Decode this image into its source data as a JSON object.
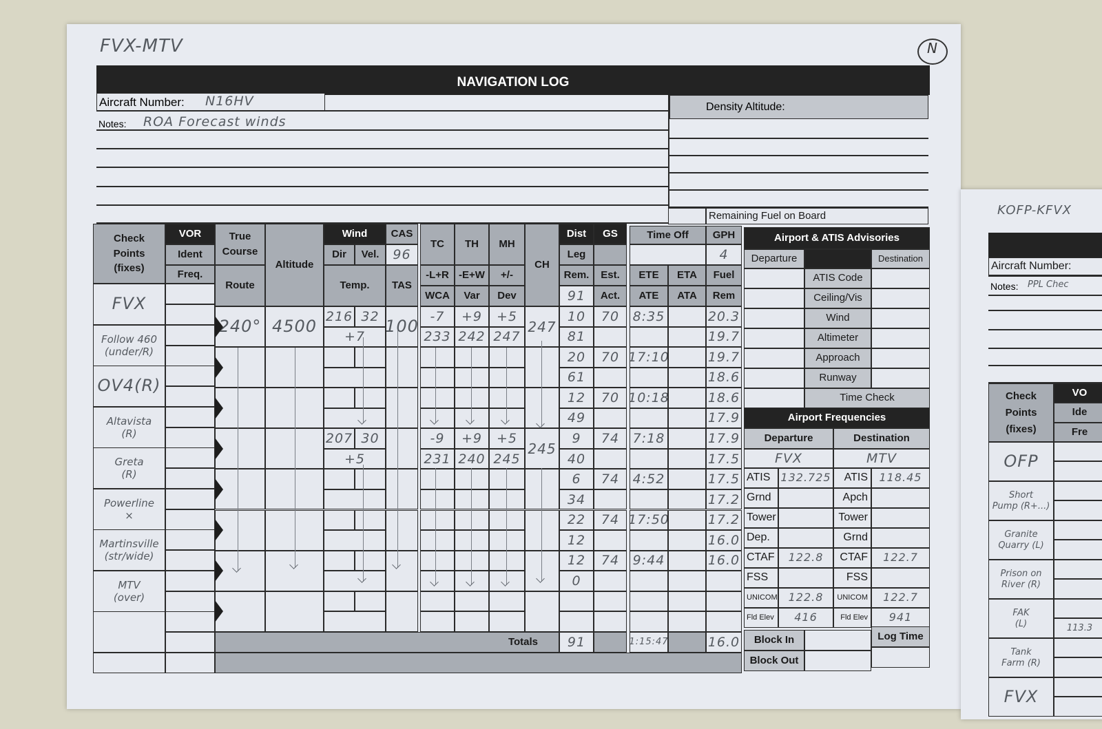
{
  "sheet": {
    "route_note": "FVX-MTV",
    "corner_mark": "N",
    "title": "NAVIGATION LOG",
    "aircraft_number_label": "Aircraft Number:",
    "aircraft_number": "N16HV",
    "notes_label": "Notes:",
    "notes": "ROA Forecast winds",
    "density_altitude_label": "Density Altitude:",
    "remaining_fuel_label": "Remaining Fuel on Board"
  },
  "nav": {
    "headers": {
      "check": "Check\nPoints\n(fixes)",
      "vor": "VOR",
      "ident": "Ident",
      "freq": "Freq.",
      "true_course": "True\nCourse",
      "route": "Route",
      "altitude": "Altitude",
      "wind": "Wind",
      "dir": "Dir",
      "vel": "Vel.",
      "temp": "Temp.",
      "cas": "CAS",
      "tas": "TAS",
      "tc": "TC",
      "th": "TH",
      "mh": "MH",
      "lr": "-L+R",
      "wca": "WCA",
      "ew": "-E+W",
      "var": "Var",
      "pm": "+/-",
      "dev": "Dev",
      "ch": "CH",
      "dist": "Dist",
      "gs": "GS",
      "leg": "Leg",
      "rem": "Rem.",
      "est": "Est.",
      "act": "Act.",
      "time_off": "Time Off",
      "ete": "ETE",
      "eta": "ETA",
      "ate": "ATE",
      "ata": "ATA",
      "gph": "GPH",
      "fuel": "Fuel",
      "fuel_rem": "Rem",
      "totals": "Totals"
    },
    "cas": "96",
    "total_rem": "91",
    "gph": "4",
    "checkpoints": [
      "FVX",
      "Follow 460\n(under/R)",
      "OV4(R)",
      "Altavista\n(R)",
      "Greta\n(R)",
      "Powerline\n×",
      "Martinsville\n(str/wide)",
      "MTV\n(over)"
    ],
    "legs": [
      {
        "route": "240°",
        "altitude": "4500",
        "wind_dir": "216",
        "wind_vel": "32",
        "temp": "+7",
        "tas": "100",
        "wca": "-7",
        "var": "+9",
        "dev": "+5",
        "th": "233",
        "mh": "242",
        "dh": "247",
        "ch": "247",
        "dist_leg": "10",
        "dist_rem": "81",
        "gs_est": "70",
        "ete": "8:35",
        "fuel_a": "20.3",
        "fuel_b": "19.7"
      },
      {
        "route": "",
        "altitude": "",
        "wind_dir": "",
        "wind_vel": "",
        "temp": "",
        "tas": "",
        "wca": "",
        "var": "",
        "dev": "",
        "th": "",
        "mh": "",
        "dh": "",
        "ch": "",
        "dist_leg": "20",
        "dist_rem": "61",
        "gs_est": "70",
        "ete": "17:10",
        "fuel_a": "19.7",
        "fuel_b": "18.6"
      },
      {
        "route": "",
        "altitude": "",
        "wind_dir": "",
        "wind_vel": "",
        "temp": "",
        "tas": "",
        "wca": "",
        "var": "",
        "dev": "",
        "th": "",
        "mh": "",
        "dh": "",
        "ch": "",
        "dist_leg": "12",
        "dist_rem": "49",
        "gs_est": "70",
        "ete": "10:18",
        "fuel_a": "18.6",
        "fuel_b": "17.9"
      },
      {
        "route": "",
        "altitude": "",
        "wind_dir": "207",
        "wind_vel": "30",
        "temp": "+5",
        "tas": "",
        "wca": "-9",
        "var": "+9",
        "dev": "+5",
        "th": "231",
        "mh": "240",
        "dh": "245",
        "ch": "245",
        "dist_leg": "9",
        "dist_rem": "40",
        "gs_est": "74",
        "ete": "7:18",
        "fuel_a": "17.9",
        "fuel_b": "17.5"
      },
      {
        "route": "",
        "altitude": "",
        "wind_dir": "",
        "wind_vel": "",
        "temp": "",
        "tas": "",
        "wca": "",
        "var": "",
        "dev": "",
        "th": "",
        "mh": "",
        "dh": "",
        "ch": "",
        "dist_leg": "6",
        "dist_rem": "34",
        "gs_est": "74",
        "ete": "4:52",
        "fuel_a": "17.5",
        "fuel_b": "17.2"
      },
      {
        "route": "",
        "altitude": "",
        "wind_dir": "",
        "wind_vel": "",
        "temp": "",
        "tas": "",
        "wca": "",
        "var": "",
        "dev": "",
        "th": "",
        "mh": "",
        "dh": "",
        "ch": "",
        "dist_leg": "22",
        "dist_rem": "12",
        "gs_est": "74",
        "ete": "17:50",
        "fuel_a": "17.2",
        "fuel_b": "16.0"
      },
      {
        "route": "",
        "altitude": "",
        "wind_dir": "",
        "wind_vel": "",
        "temp": "",
        "tas": "",
        "wca": "",
        "var": "",
        "dev": "",
        "th": "",
        "mh": "",
        "dh": "",
        "ch": "",
        "dist_leg": "12",
        "dist_rem": "0",
        "gs_est": "74",
        "ete": "9:44",
        "fuel_a": "16.0",
        "fuel_b": ""
      },
      {
        "route": "",
        "altitude": "",
        "wind_dir": "",
        "wind_vel": "",
        "temp": "",
        "tas": "",
        "wca": "",
        "var": "",
        "dev": "",
        "th": "",
        "mh": "",
        "dh": "",
        "ch": "",
        "dist_leg": "",
        "dist_rem": "",
        "gs_est": "",
        "ete": "",
        "fuel_a": "",
        "fuel_b": ""
      }
    ],
    "totals": {
      "dist": "91",
      "ate": "1:15:47",
      "fuel": "16.0"
    }
  },
  "advisories": {
    "title": "Airport & ATIS Advisories",
    "departure": "Departure",
    "destination": "Destination",
    "rows": [
      "ATIS Code",
      "Ceiling/Vis",
      "Wind",
      "Altimeter",
      "Approach",
      "Runway",
      "Time Check"
    ]
  },
  "frequencies": {
    "title": "Airport Frequencies",
    "departure": "Departure",
    "destination": "Destination",
    "departure_airport": "FVX",
    "destination_airport": "MTV",
    "rows": [
      {
        "dep_label": "ATIS",
        "dep_value": "132.725",
        "dest_label": "ATIS",
        "dest_value": "118.45"
      },
      {
        "dep_label": "Grnd",
        "dep_value": "",
        "dest_label": "Apch",
        "dest_value": ""
      },
      {
        "dep_label": "Tower",
        "dep_value": "",
        "dest_label": "Tower",
        "dest_value": ""
      },
      {
        "dep_label": "Dep.",
        "dep_value": "",
        "dest_label": "Grnd",
        "dest_value": ""
      },
      {
        "dep_label": "CTAF",
        "dep_value": "122.8",
        "dest_label": "CTAF",
        "dest_value": "122.7"
      },
      {
        "dep_label": "FSS",
        "dep_value": "",
        "dest_label": "FSS",
        "dest_value": ""
      },
      {
        "dep_label": "UNICOM",
        "dep_value": "122.8",
        "dest_label": "UNICOM",
        "dest_value": "122.7"
      },
      {
        "dep_label": "Fld Elev",
        "dep_value": "416",
        "dest_label": "Fld Elev",
        "dest_value": "941"
      }
    ]
  },
  "block": {
    "block_in": "Block In",
    "block_out": "Block Out",
    "log_time": "Log Time"
  },
  "second_sheet": {
    "route_note": "KOFP-KFVX",
    "aircraft_number_label": "Aircraft Number:",
    "notes_label": "Notes:",
    "notes": "PPL Chec",
    "check": "Check\nPoints\n(fixes)",
    "vor": "VO",
    "ident": "Ide",
    "freq": "Fre",
    "checkpoints": [
      "OFP",
      "Short\nPump (R+...)",
      "Granite\nQuarry (L)",
      "Prison on\nRiver (R)",
      "FAK\n(L)",
      "Tank\nFarm (R)",
      "FVX"
    ],
    "fak_freq": "113.3"
  },
  "colors": {
    "header_gray": "#a8adb4",
    "header_dark": "#232323",
    "paper": "#e8ebf1",
    "pencil": "#555a60"
  }
}
